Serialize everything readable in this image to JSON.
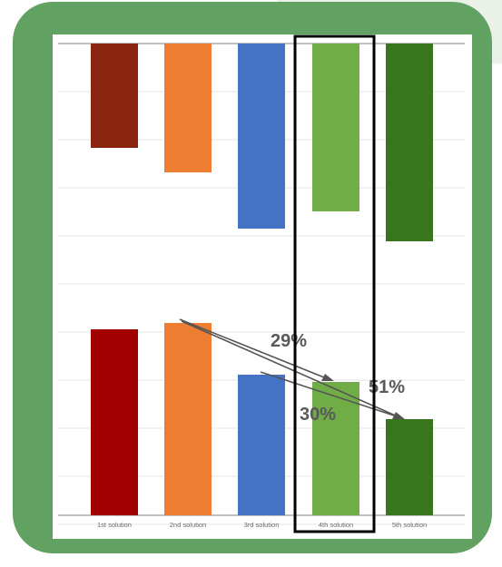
{
  "chart_data": [
    {
      "type": "bar",
      "orientation": "inverted",
      "categories": [
        "1st solution",
        "2nd solution",
        "3rd solution",
        "4th solution",
        "5th solution"
      ],
      "values": [
        115,
        142,
        204,
        185,
        218
      ],
      "colors": [
        "#8b2510",
        "#ed7d31",
        "#4472c4",
        "#70ad47",
        "#38761d"
      ],
      "grid": true
    },
    {
      "type": "bar",
      "categories": [
        "1st solution",
        "2nd solution",
        "3rd solution",
        "4th solution",
        "5th solution"
      ],
      "values": [
        205,
        212,
        155,
        147,
        106
      ],
      "colors": [
        "#a00000",
        "#ed7d31",
        "#4472c4",
        "#70ad47",
        "#38761d"
      ],
      "grid": true,
      "annotations": [
        "29%",
        "30%",
        "51%"
      ],
      "highlighted_category": "4th solution"
    }
  ]
}
